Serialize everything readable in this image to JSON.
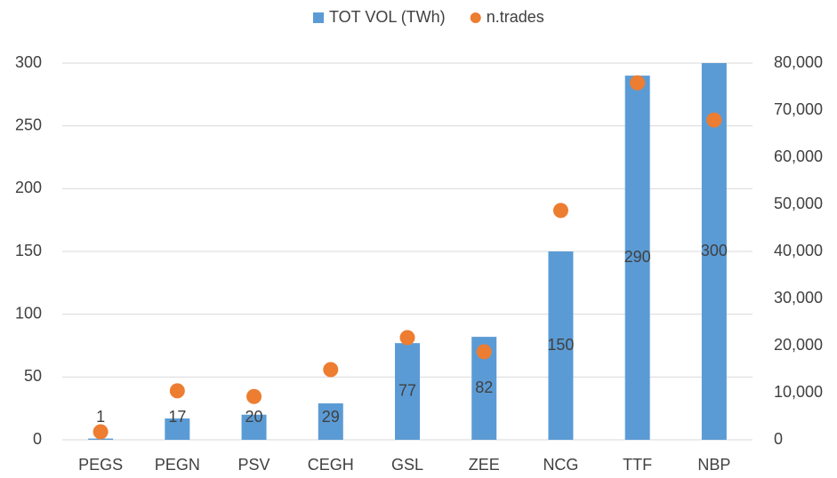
{
  "chart_data": {
    "type": "bar",
    "categories": [
      "PEGS",
      "PEGN",
      "PSV",
      "CEGH",
      "GSL",
      "ZEE",
      "NCG",
      "TTF",
      "NBP"
    ],
    "series": [
      {
        "name": "TOT VOL (TWh)",
        "type": "bar",
        "color": "#5b9bd5",
        "values": [
          1,
          17,
          20,
          29,
          77,
          82,
          150,
          290,
          300
        ]
      },
      {
        "name": "n.trades",
        "type": "scatter",
        "axis": "y2",
        "color": "#ed7d31",
        "values": [
          1700,
          10400,
          9200,
          14900,
          21700,
          18700,
          48700,
          75800,
          67900
        ]
      }
    ],
    "ylim": [
      0,
      300
    ],
    "yticks": [
      0,
      50,
      100,
      150,
      200,
      250,
      300
    ],
    "y2lim": [
      0,
      80000
    ],
    "y2ticks": [
      0,
      {
        "value": 10000,
        "label": "10,000"
      },
      {
        "value": 20000,
        "label": "20,000"
      },
      {
        "value": 30000,
        "label": "30,000"
      },
      {
        "value": 40000,
        "label": "40,000"
      },
      {
        "value": 50000,
        "label": "50,000"
      },
      {
        "value": 60000,
        "label": "60,000"
      },
      {
        "value": 70000,
        "label": "70,000"
      },
      {
        "value": 80000,
        "label": "80,000"
      }
    ],
    "grid": true,
    "legend": "top",
    "data_labels": true
  }
}
